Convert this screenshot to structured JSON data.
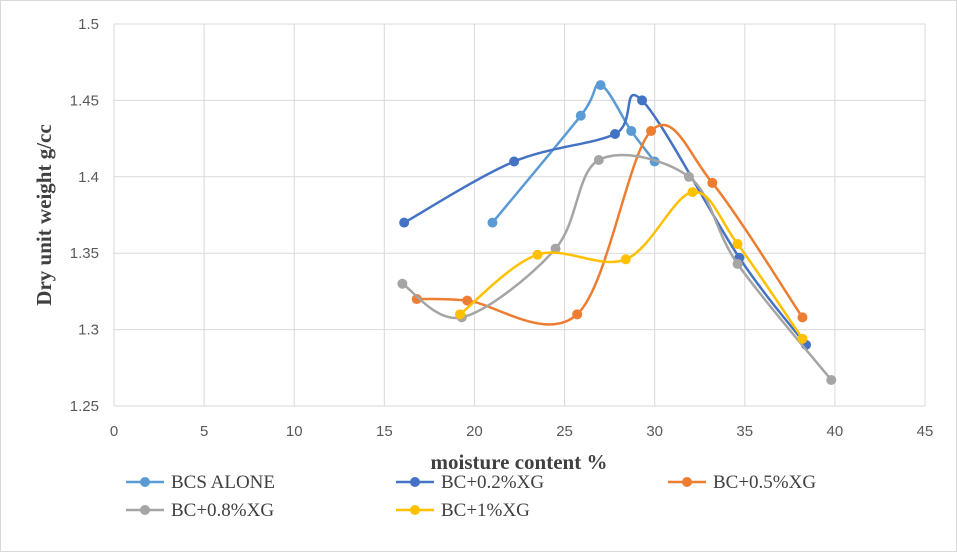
{
  "chart_data": {
    "type": "scatter",
    "title": "",
    "xlabel": "moisture content  %",
    "ylabel": "Dry unit weight  g/cc",
    "xlim": [
      0,
      45
    ],
    "ylim": [
      1.25,
      1.5
    ],
    "xticks": [
      0,
      5,
      10,
      15,
      20,
      25,
      30,
      35,
      40,
      45
    ],
    "yticks": [
      1.25,
      1.3,
      1.35,
      1.4,
      1.45,
      1.5
    ],
    "ytick_labels": [
      "1.25",
      "1.3",
      "1.35",
      "1.4",
      "1.45",
      "1.5"
    ],
    "grid": true,
    "smooth_lines": true,
    "legend_position": "bottom",
    "series": [
      {
        "name": "BCS ALONE",
        "color": "#5B9BD5",
        "x": [
          21.0,
          25.9,
          27.0,
          28.7,
          30.0
        ],
        "y": [
          1.37,
          1.44,
          1.46,
          1.43,
          1.41
        ]
      },
      {
        "name": "BC+0.2%XG",
        "color": "#4472C4",
        "x": [
          16.1,
          22.2,
          27.8,
          29.3,
          34.7,
          38.4
        ],
        "y": [
          1.37,
          1.41,
          1.428,
          1.45,
          1.347,
          1.29
        ]
      },
      {
        "name": "BC+0.5%XG",
        "color": "#ED7D31",
        "x": [
          16.8,
          19.6,
          25.7,
          29.8,
          33.2,
          38.2
        ],
        "y": [
          1.32,
          1.319,
          1.31,
          1.43,
          1.396,
          1.308
        ]
      },
      {
        "name": "BC+0.8%XG",
        "color": "#A5A5A5",
        "x": [
          16.0,
          19.3,
          24.5,
          26.9,
          31.9,
          34.6,
          39.8
        ],
        "y": [
          1.33,
          1.308,
          1.353,
          1.411,
          1.4,
          1.343,
          1.267
        ]
      },
      {
        "name": "BC+1%XG",
        "color": "#FFC000",
        "x": [
          19.2,
          23.5,
          28.4,
          32.1,
          34.6,
          38.2
        ],
        "y": [
          1.31,
          1.349,
          1.346,
          1.39,
          1.356,
          1.294
        ]
      }
    ]
  }
}
